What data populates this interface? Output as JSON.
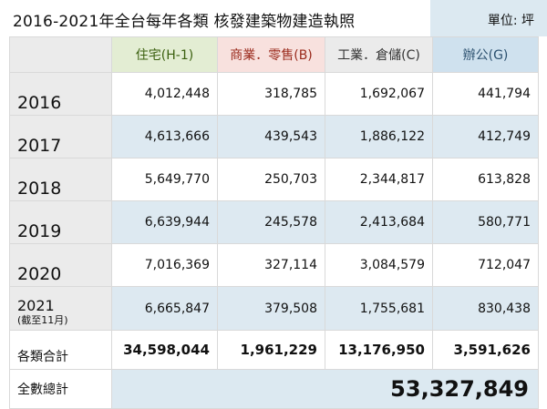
{
  "title": "2016-2021年全台每年各類 核發建築物建造執照",
  "unit": "單位: 坪",
  "headers": [
    "住宅(H-1)",
    "商業．零售(B)",
    "工業．倉儲(C)",
    "辦公(G)"
  ],
  "rows": [
    {
      "year": "2016",
      "values": [
        "4,012,448",
        "318,785",
        "1,692,067",
        "441,794"
      ]
    },
    {
      "year": "2017",
      "values": [
        "4,613,666",
        "439,543",
        "1,886,122",
        "412,749"
      ]
    },
    {
      "year": "2018",
      "values": [
        "5,649,770",
        "250,703",
        "2,344,817",
        "613,828"
      ]
    },
    {
      "year": "2019",
      "values": [
        "6,639,944",
        "245,578",
        "2,413,684",
        "580,771"
      ]
    },
    {
      "year": "2020",
      "values": [
        "7,016,369",
        "327,114",
        "3,084,579",
        "712,047"
      ]
    },
    {
      "year": "2021",
      "note": "(截至11月)",
      "values": [
        "6,665,847",
        "379,508",
        "1,755,681",
        "830,438"
      ]
    }
  ],
  "subtotal": {
    "label": "各類合計",
    "values": [
      "34,598,044",
      "1,961,229",
      "13,176,950",
      "3,591,626"
    ]
  },
  "total": {
    "label": "全數總計",
    "value": "53,327,849"
  },
  "colors": {
    "residential": "#e3edd3",
    "commercial": "#f8e1de",
    "industrial": "#ebebeb",
    "office": "#cfe1ee",
    "row_alt": "#dde9f1"
  }
}
